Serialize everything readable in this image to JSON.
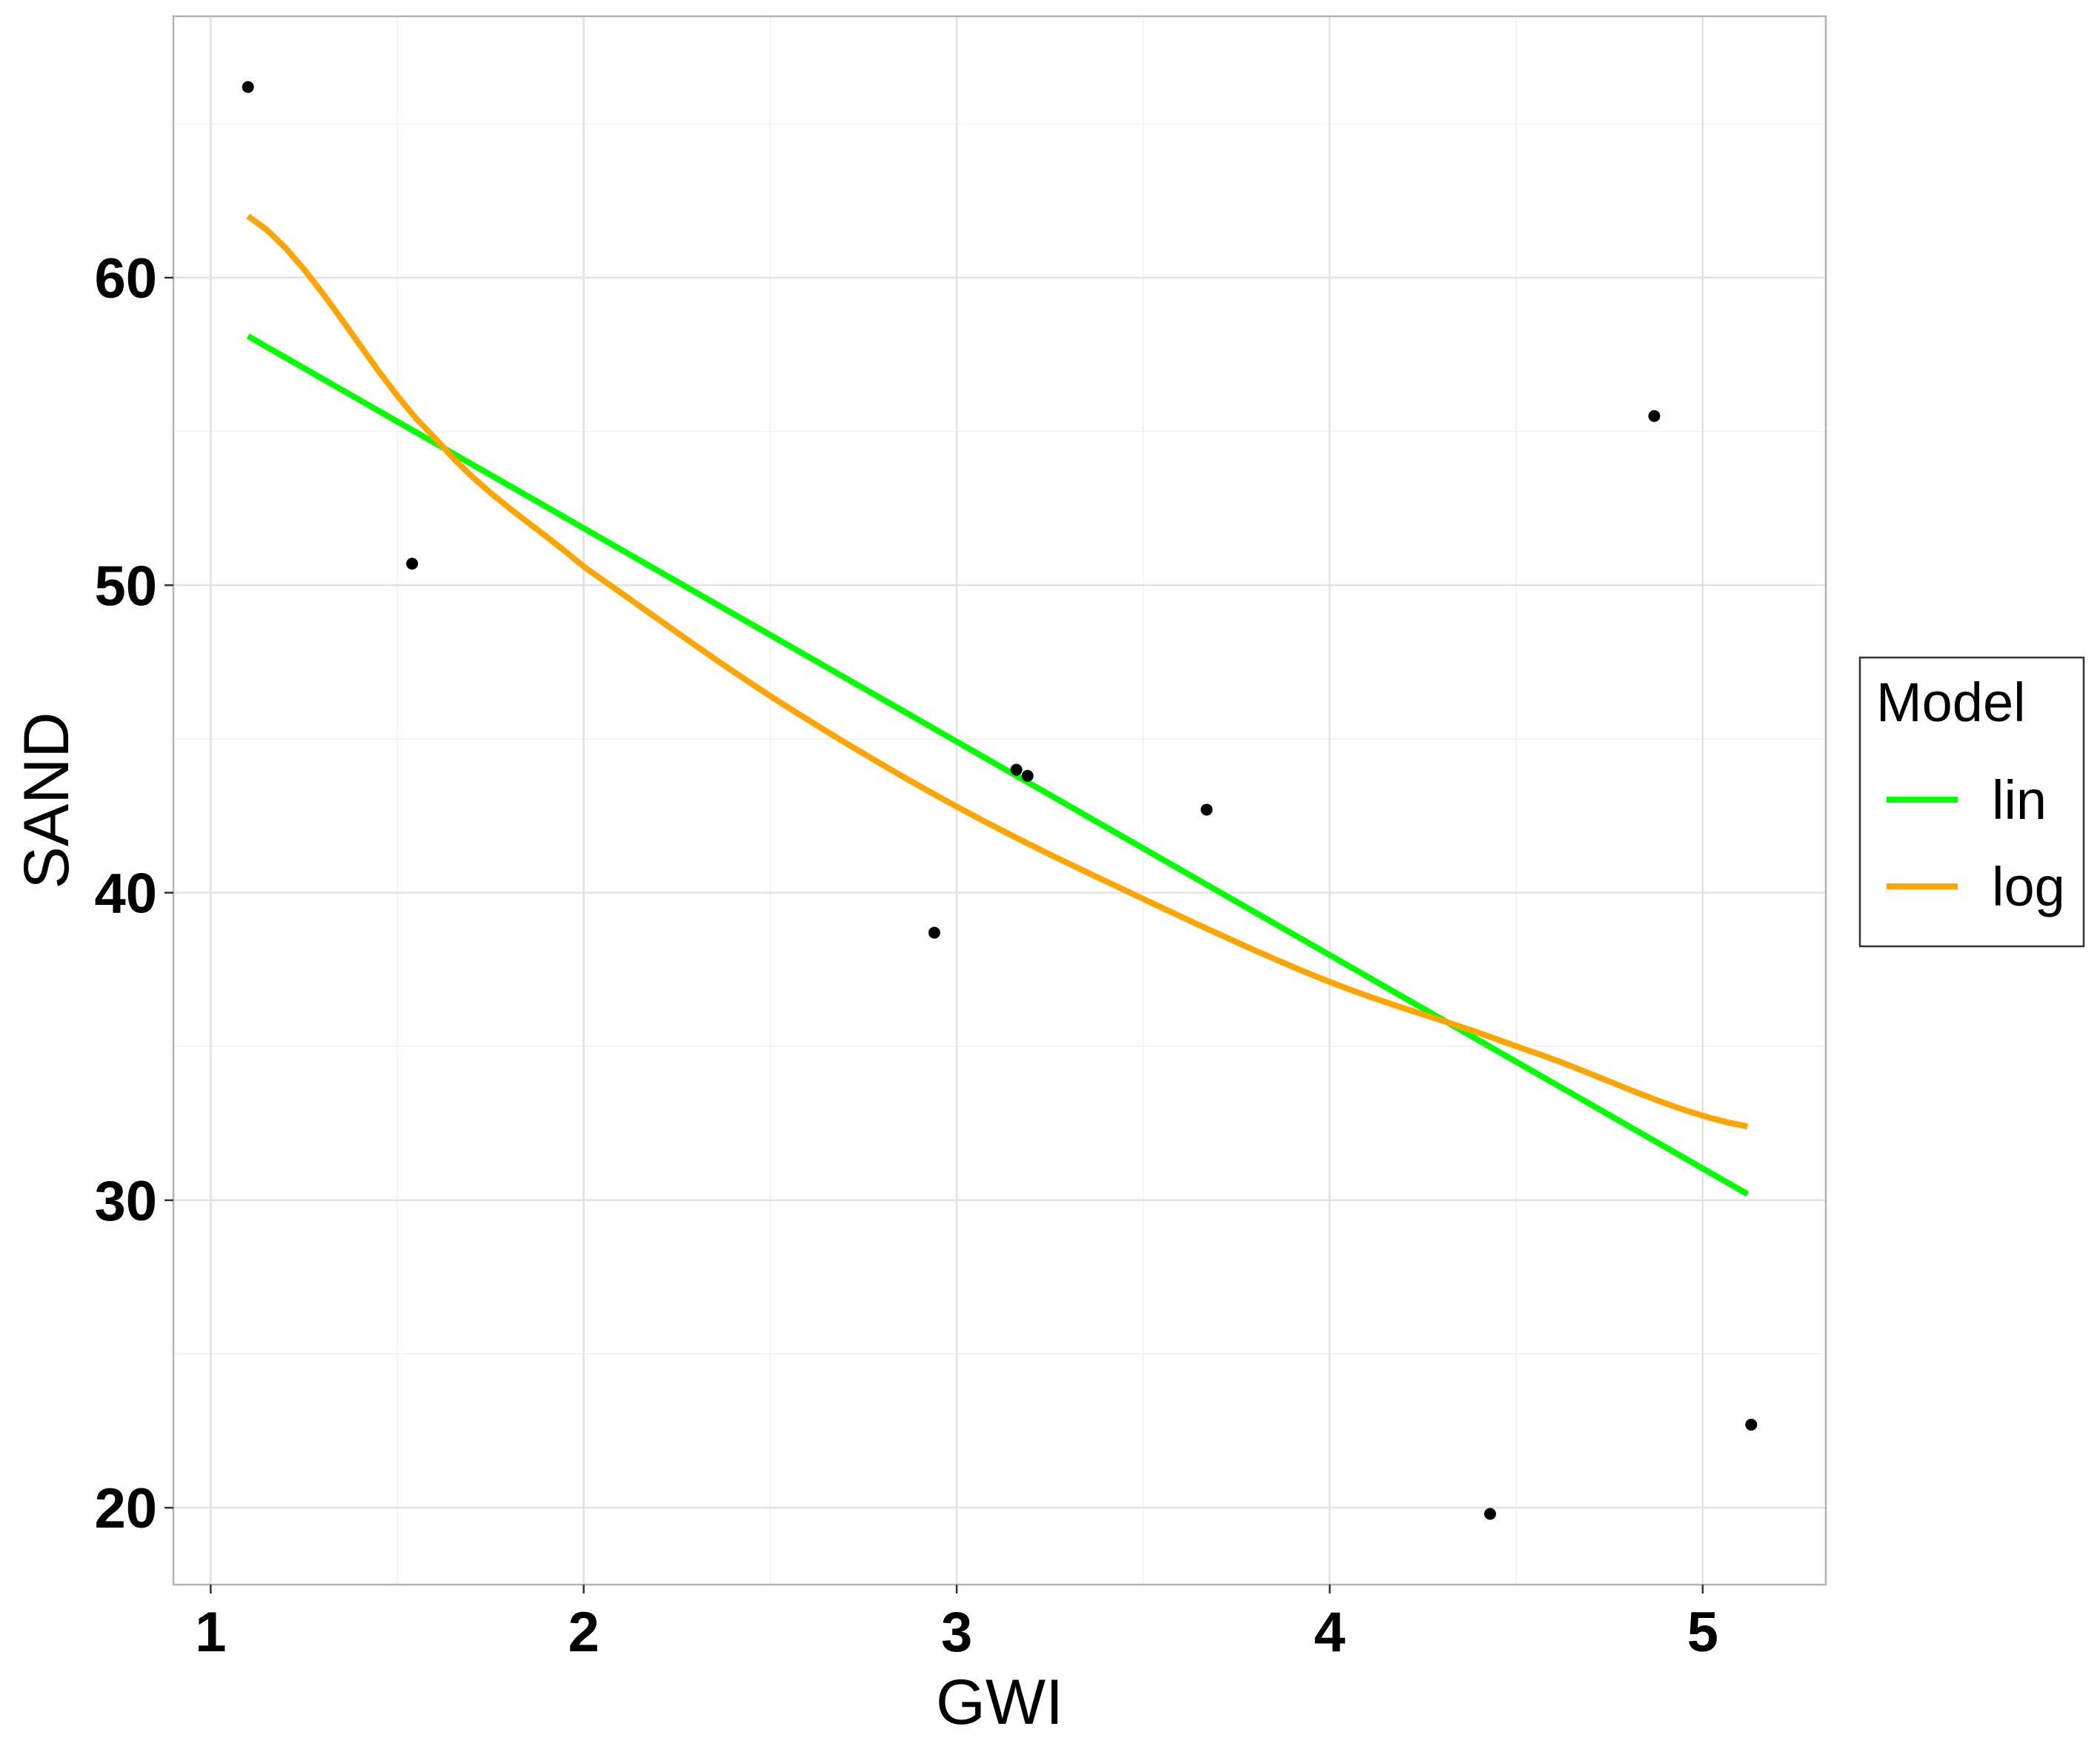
{
  "chart_data": {
    "type": "scatter",
    "xlabel": "GWI",
    "ylabel": "SAND",
    "xlim": [
      0.9,
      5.33
    ],
    "ylim": [
      17.5,
      68.5
    ],
    "xticks": [
      1,
      2,
      3,
      4,
      5
    ],
    "yticks": [
      20,
      30,
      40,
      50,
      60
    ],
    "grid": true,
    "legend": {
      "title": "Model",
      "placement": "right"
    },
    "points": {
      "x": [
        1.1,
        1.54,
        2.94,
        3.16,
        3.19,
        3.67,
        4.43,
        4.87,
        5.13
      ],
      "y": [
        66.2,
        50.7,
        38.7,
        44.0,
        43.8,
        42.7,
        19.8,
        55.5,
        22.7
      ]
    },
    "series": [
      {
        "name": "lin",
        "color": "#00ff00",
        "model": "linear",
        "x": [
          1.1,
          5.12
        ],
        "y": [
          58.1,
          30.2
        ]
      },
      {
        "name": "log",
        "color": "#ffa500",
        "model": "exponential",
        "x": [
          1.1,
          1.6,
          2.0,
          2.5,
          3.0,
          3.5,
          4.0,
          4.5,
          5.12
        ],
        "y": [
          62.0,
          54.8,
          50.6,
          46.4,
          42.8,
          39.8,
          37.1,
          35.0,
          32.4
        ]
      }
    ]
  }
}
